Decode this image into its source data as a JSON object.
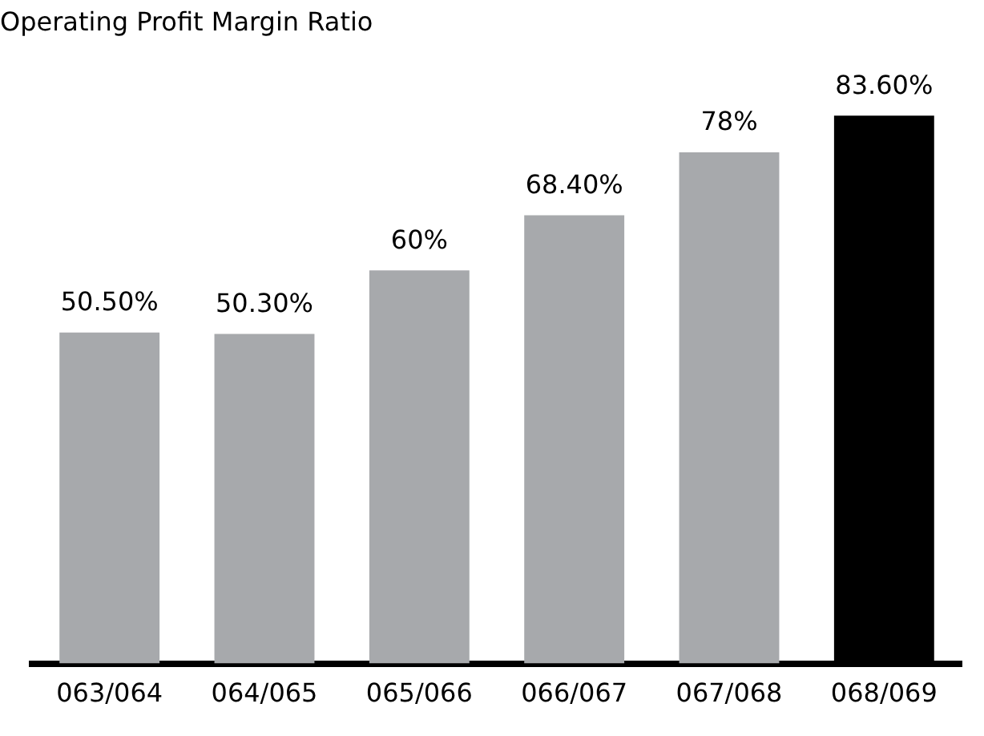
{
  "chart_data": {
    "type": "bar",
    "title": "Operating Profit Margin Ratio",
    "categories": [
      "063/064",
      "064/065",
      "065/066",
      "066/067",
      "067/068",
      "068/069"
    ],
    "values": [
      50.5,
      50.3,
      60,
      68.4,
      78,
      83.6
    ],
    "colors": [
      "#a7a9ac",
      "#a7a9ac",
      "#a7a9ac",
      "#a7a9ac",
      "#a7a9ac",
      "#000000"
    ],
    "value_labels": [
      "50.50%",
      "50.30%",
      "60%",
      "68.40%",
      "78%",
      "83.60%"
    ],
    "grid": false,
    "legend": false
  }
}
